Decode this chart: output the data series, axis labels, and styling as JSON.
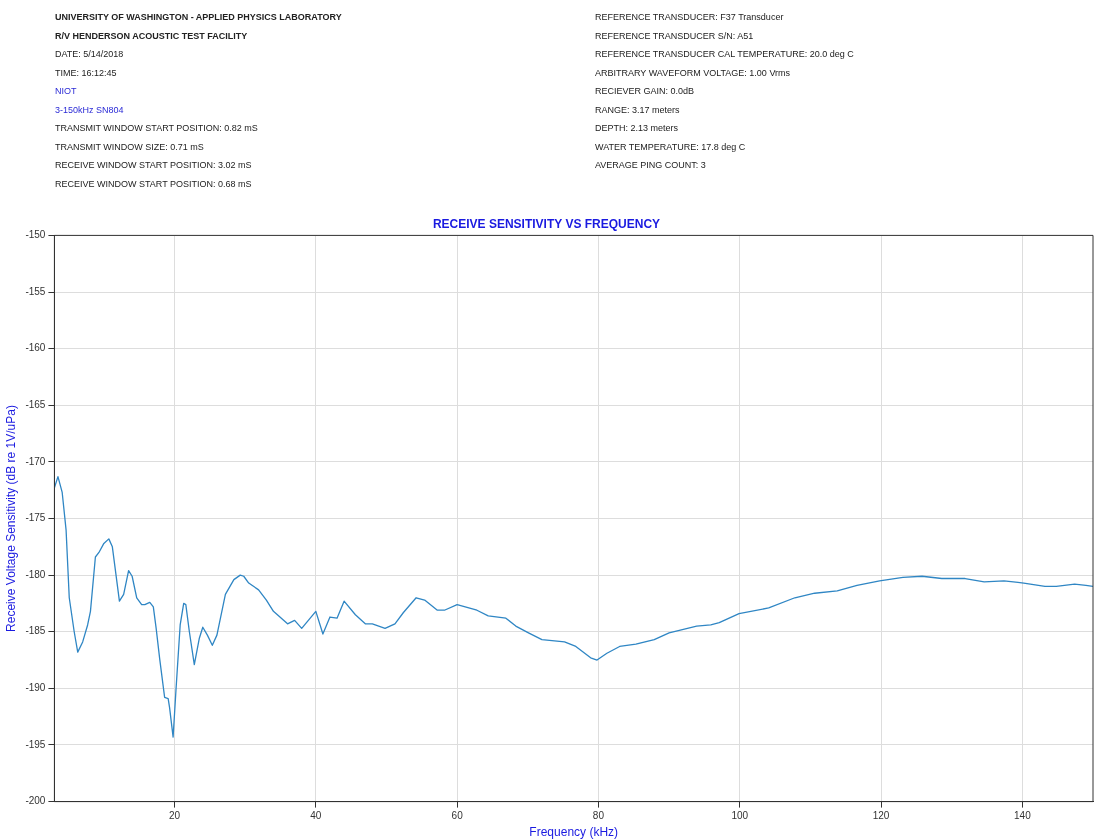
{
  "chart_data": {
    "type": "line",
    "title": "RECEIVE SENSITIVITY VS FREQUENCY",
    "xlabel": "Frequency (kHz)",
    "ylabel": "Receive Voltage Sensitivity (dB re 1V/uPa)",
    "annotations": [
      "UNIVERSITY OF WASHINGTON - APPLIED PHYSICS LABORATORY",
      "R/V HENDERSON ACOUSTIC TEST FACILITY",
      "DATE: 5/14/2018",
      "TIME: 16:12:45",
      "NIOT",
      "3-150kHz SN804",
      "TRANSMIT WINDOW START POSITION: 0.82 mS",
      "TRANSMIT WINDOW SIZE: 0.71 mS",
      "RECEIVE WINDOW START POSITION: 3.02 mS",
      "RECEIVE WINDOW START POSITION: 0.68 mS",
      "REFERENCE TRANSDUCER: F37 Transducer",
      "REFERENCE TRANSDUCER S/N: A51",
      "REFERENCE TRANSDUCER CAL TEMPERATURE: 20.0 deg C",
      "ARBITRARY WAVEFORM VOLTAGE: 1.00 Vrms",
      "RECIEVER GAIN:  0.0dB",
      "RANGE: 3.17 meters",
      "DEPTH: 2.13 meters",
      "WATER TEMPERATURE: 17.8 deg C",
      "AVERAGE PING COUNT: 3"
    ],
    "x": [
      3.0,
      3.5,
      4.1,
      4.65,
      5.1,
      5.8,
      6.3,
      7.0,
      7.7,
      8.1,
      8.8,
      9.3,
      10.0,
      10.7,
      11.2,
      12.2,
      12.8,
      13.5,
      14.0,
      14.65,
      15.35,
      15.8,
      16.5,
      17.0,
      17.4,
      17.9,
      18.6,
      19.1,
      19.3,
      19.8,
      20.2,
      20.8,
      21.3,
      21.6,
      22.1,
      22.8,
      23.5,
      24.0,
      24.65,
      25.35,
      26.0,
      27.2,
      28.4,
      29.3,
      29.8,
      30.5,
      31.9,
      33.0,
      34.0,
      36.0,
      37.0,
      38.0,
      40.0,
      41.0,
      42.0,
      43.0,
      44.0,
      45.6,
      47.0,
      48.0,
      49.8,
      51.2,
      52.4,
      54.2,
      55.4,
      57.2,
      58.2,
      60.0,
      62.8,
      64.4,
      66.9,
      68.3,
      70.1,
      72.0,
      75.2,
      76.8,
      78.9,
      79.8,
      81.2,
      83.0,
      85.3,
      87.9,
      90.0,
      93.9,
      95.9,
      97.1,
      99.9,
      104.1,
      107.8,
      110.6,
      113.8,
      116.6,
      119.8,
      123.1,
      125.8,
      128.6,
      131.9,
      134.6,
      137.4,
      140.2,
      143.2,
      144.8,
      147.4,
      149.0,
      150.0
    ],
    "series": [
      {
        "color": "#2f86c4",
        "values": [
          -172.3,
          -171.3,
          -172.7,
          -176.0,
          -182.0,
          -185.0,
          -186.8,
          -185.9,
          -184.4,
          -183.2,
          -178.4,
          -178.0,
          -177.2,
          -176.8,
          -177.5,
          -182.3,
          -181.7,
          -179.6,
          -180.1,
          -182.0,
          -182.6,
          -182.6,
          -182.4,
          -182.8,
          -184.7,
          -187.4,
          -190.8,
          -190.9,
          -191.7,
          -194.3,
          -190.2,
          -184.4,
          -182.5,
          -182.6,
          -185.0,
          -187.9,
          -185.6,
          -184.6,
          -185.3,
          -186.2,
          -185.3,
          -181.7,
          -180.4,
          -180.0,
          -180.1,
          -180.7,
          -181.3,
          -182.2,
          -183.2,
          -184.3,
          -184.0,
          -184.7,
          -183.2,
          -185.2,
          -183.7,
          -183.8,
          -182.3,
          -183.5,
          -184.3,
          -184.3,
          -184.7,
          -184.3,
          -183.3,
          -182.0,
          -182.2,
          -183.1,
          -183.1,
          -182.6,
          -183.1,
          -183.6,
          -183.8,
          -184.5,
          -185.1,
          -185.7,
          -185.9,
          -186.3,
          -187.3,
          -187.5,
          -186.9,
          -186.3,
          -186.1,
          -185.7,
          -185.1,
          -184.5,
          -184.4,
          -184.2,
          -183.4,
          -182.9,
          -182.0,
          -181.6,
          -181.4,
          -180.9,
          -180.5,
          -180.2,
          -180.1,
          -180.3,
          -180.3,
          -180.6,
          -180.5,
          -180.7,
          -181.0,
          -181.0,
          -180.8,
          -180.9,
          -181.0
        ]
      }
    ],
    "xlim": [
      3,
      150
    ],
    "xticks": [
      20,
      40,
      60,
      80,
      100,
      120,
      140
    ],
    "ylim": [
      -200,
      -150
    ],
    "yticks": [
      -200,
      -195,
      -190,
      -185,
      -180,
      -175,
      -170,
      -165,
      -160,
      -155,
      -150
    ],
    "grid": true,
    "legend": false,
    "tick_labels": [
      "x",
      "y"
    ]
  }
}
